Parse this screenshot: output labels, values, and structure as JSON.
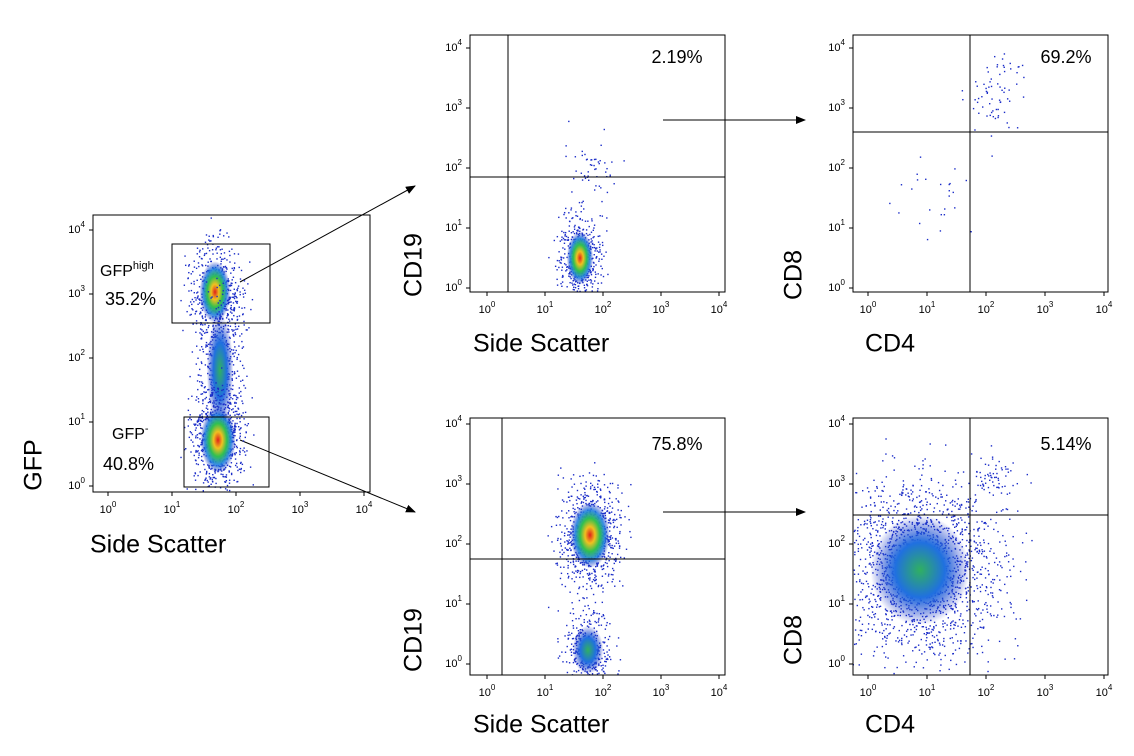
{
  "panels": [
    {
      "x_label": "Side Scatter",
      "y_label": "GFP",
      "x_ticks": [
        {
          "base": "10",
          "exp": "0"
        },
        {
          "base": "10",
          "exp": "1"
        },
        {
          "base": "10",
          "exp": "2"
        },
        {
          "base": "10",
          "exp": "3"
        },
        {
          "base": "10",
          "exp": "4"
        }
      ],
      "y_ticks": [
        {
          "base": "10",
          "exp": "0"
        },
        {
          "base": "10",
          "exp": "1"
        },
        {
          "base": "10",
          "exp": "2"
        },
        {
          "base": "10",
          "exp": "3"
        },
        {
          "base": "10",
          "exp": "4"
        }
      ],
      "gates": [
        {
          "label": "GFP",
          "label_sup": "high",
          "percent": "35.2%"
        },
        {
          "label": "GFP",
          "label_sup": "-",
          "percent": "40.8%"
        }
      ]
    },
    {
      "x_label": "Side Scatter",
      "y_label": "CD19",
      "x_ticks": [
        {
          "base": "10",
          "exp": "0"
        },
        {
          "base": "10",
          "exp": "1"
        },
        {
          "base": "10",
          "exp": "2"
        },
        {
          "base": "10",
          "exp": "3"
        },
        {
          "base": "10",
          "exp": "4"
        }
      ],
      "y_ticks": [
        {
          "base": "10",
          "exp": "0"
        },
        {
          "base": "10",
          "exp": "1"
        },
        {
          "base": "10",
          "exp": "2"
        },
        {
          "base": "10",
          "exp": "3"
        },
        {
          "base": "10",
          "exp": "4"
        }
      ],
      "gates": [
        {
          "percent": "2.19%"
        }
      ]
    },
    {
      "x_label": "CD4",
      "y_label": "CD8",
      "x_ticks": [
        {
          "base": "10",
          "exp": "0"
        },
        {
          "base": "10",
          "exp": "1"
        },
        {
          "base": "10",
          "exp": "2"
        },
        {
          "base": "10",
          "exp": "3"
        },
        {
          "base": "10",
          "exp": "4"
        }
      ],
      "y_ticks": [
        {
          "base": "10",
          "exp": "0"
        },
        {
          "base": "10",
          "exp": "1"
        },
        {
          "base": "10",
          "exp": "2"
        },
        {
          "base": "10",
          "exp": "3"
        },
        {
          "base": "10",
          "exp": "4"
        }
      ],
      "gates": [
        {
          "percent": "69.2%"
        }
      ]
    },
    {
      "x_label": "Side Scatter",
      "y_label": "CD19",
      "x_ticks": [
        {
          "base": "10",
          "exp": "0"
        },
        {
          "base": "10",
          "exp": "1"
        },
        {
          "base": "10",
          "exp": "2"
        },
        {
          "base": "10",
          "exp": "3"
        },
        {
          "base": "10",
          "exp": "4"
        }
      ],
      "y_ticks": [
        {
          "base": "10",
          "exp": "0"
        },
        {
          "base": "10",
          "exp": "1"
        },
        {
          "base": "10",
          "exp": "2"
        },
        {
          "base": "10",
          "exp": "3"
        },
        {
          "base": "10",
          "exp": "4"
        }
      ],
      "gates": [
        {
          "percent": "75.8%"
        }
      ]
    },
    {
      "x_label": "CD4",
      "y_label": "CD8",
      "x_ticks": [
        {
          "base": "10",
          "exp": "0"
        },
        {
          "base": "10",
          "exp": "1"
        },
        {
          "base": "10",
          "exp": "2"
        },
        {
          "base": "10",
          "exp": "3"
        },
        {
          "base": "10",
          "exp": "4"
        }
      ],
      "y_ticks": [
        {
          "base": "10",
          "exp": "0"
        },
        {
          "base": "10",
          "exp": "1"
        },
        {
          "base": "10",
          "exp": "2"
        },
        {
          "base": "10",
          "exp": "3"
        },
        {
          "base": "10",
          "exp": "4"
        }
      ],
      "gates": [
        {
          "percent": "5.14%"
        }
      ]
    }
  ]
}
